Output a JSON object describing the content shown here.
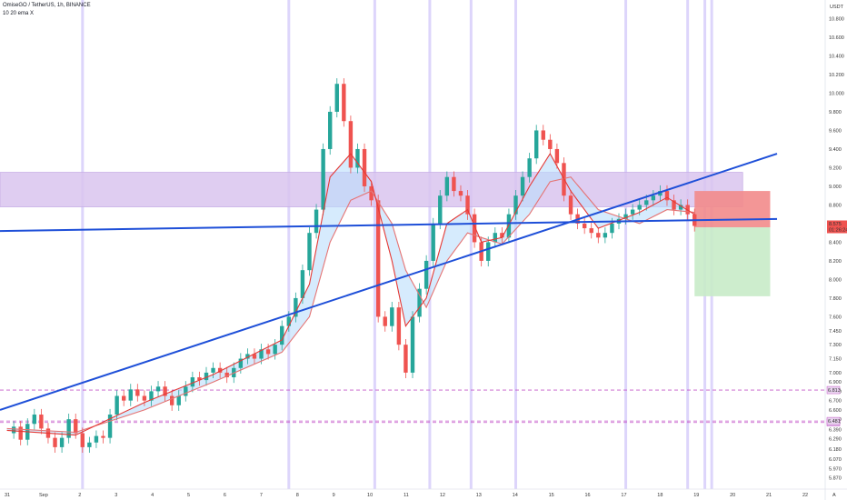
{
  "header": {
    "symbol_line": "OmiseGO / TetherUS, 1h, BINANCE",
    "indicator_line": "10 20 ema X"
  },
  "chart_data": {
    "type": "line",
    "title": "OmiseGO / TetherUS, 1h, BINANCE",
    "currency": "USDT",
    "ylim": [
      5.75,
      11.0
    ],
    "y_ticks": [
      5.87,
      5.97,
      6.07,
      6.18,
      6.29,
      6.39,
      6.5,
      6.6,
      6.7,
      6.8,
      6.9,
      7.0,
      7.15,
      7.3,
      7.45,
      7.6,
      7.8,
      8.0,
      8.2,
      8.4,
      8.6,
      8.8,
      9.0,
      9.2,
      9.4,
      9.6,
      9.8,
      10.0,
      10.2,
      10.4,
      10.6,
      10.8
    ],
    "y_tick_labels": [
      "5.870",
      "5.970",
      "6.070",
      "6.180",
      "6.290",
      "6.390",
      "6.500",
      "6.600",
      "6.700",
      "6.800",
      "6.900",
      "7.000",
      "7.150",
      "7.300",
      "7.450",
      "7.600",
      "7.800",
      "8.000",
      "8.200",
      "8.400",
      "8.600",
      "8.800",
      "9.000",
      "9.200",
      "9.400",
      "9.600",
      "9.800",
      "10.000",
      "10.200",
      "10.400",
      "10.600",
      "10.800"
    ],
    "x_ticks": [
      "31",
      "Sep",
      "2",
      "3",
      "4",
      "5",
      "6",
      "7",
      "8",
      "9",
      "10",
      "11",
      "12",
      "13",
      "14",
      "15",
      "16",
      "17",
      "18",
      "19",
      "20",
      "21",
      "22"
    ],
    "price_series": [
      {
        "x": 0,
        "y": 6.35
      },
      {
        "x": 1,
        "y": 6.42
      },
      {
        "x": 2,
        "y": 6.28
      },
      {
        "x": 3,
        "y": 6.45
      },
      {
        "x": 4,
        "y": 6.55
      },
      {
        "x": 5,
        "y": 6.4
      },
      {
        "x": 6,
        "y": 6.3
      },
      {
        "x": 7,
        "y": 6.2
      },
      {
        "x": 8,
        "y": 6.3
      },
      {
        "x": 9,
        "y": 6.5
      },
      {
        "x": 10,
        "y": 6.35
      },
      {
        "x": 11,
        "y": 6.2
      },
      {
        "x": 12,
        "y": 6.25
      },
      {
        "x": 13,
        "y": 6.32
      },
      {
        "x": 14,
        "y": 6.3
      },
      {
        "x": 15,
        "y": 6.55
      },
      {
        "x": 16,
        "y": 6.75
      },
      {
        "x": 17,
        "y": 6.7
      },
      {
        "x": 18,
        "y": 6.82
      },
      {
        "x": 19,
        "y": 6.75
      },
      {
        "x": 20,
        "y": 6.7
      },
      {
        "x": 21,
        "y": 6.8
      },
      {
        "x": 22,
        "y": 6.85
      },
      {
        "x": 23,
        "y": 6.75
      },
      {
        "x": 24,
        "y": 6.65
      },
      {
        "x": 25,
        "y": 6.75
      },
      {
        "x": 26,
        "y": 6.85
      },
      {
        "x": 27,
        "y": 6.95
      },
      {
        "x": 28,
        "y": 6.92
      },
      {
        "x": 29,
        "y": 7.0
      },
      {
        "x": 30,
        "y": 7.05
      },
      {
        "x": 31,
        "y": 7.0
      },
      {
        "x": 32,
        "y": 6.95
      },
      {
        "x": 33,
        "y": 7.05
      },
      {
        "x": 34,
        "y": 7.15
      },
      {
        "x": 35,
        "y": 7.2
      },
      {
        "x": 36,
        "y": 7.15
      },
      {
        "x": 37,
        "y": 7.25
      },
      {
        "x": 38,
        "y": 7.2
      },
      {
        "x": 39,
        "y": 7.3
      },
      {
        "x": 40,
        "y": 7.5
      },
      {
        "x": 41,
        "y": 7.6
      },
      {
        "x": 42,
        "y": 7.8
      },
      {
        "x": 43,
        "y": 8.1
      },
      {
        "x": 44,
        "y": 8.5
      },
      {
        "x": 45,
        "y": 8.75
      },
      {
        "x": 46,
        "y": 9.4
      },
      {
        "x": 47,
        "y": 9.8
      },
      {
        "x": 48,
        "y": 10.1
      },
      {
        "x": 49,
        "y": 9.7
      },
      {
        "x": 50,
        "y": 9.2
      },
      {
        "x": 51,
        "y": 9.4
      },
      {
        "x": 52,
        "y": 9.0
      },
      {
        "x": 53,
        "y": 8.85
      },
      {
        "x": 54,
        "y": 7.6
      },
      {
        "x": 55,
        "y": 7.5
      },
      {
        "x": 56,
        "y": 7.7
      },
      {
        "x": 57,
        "y": 7.3
      },
      {
        "x": 58,
        "y": 7.0
      },
      {
        "x": 59,
        "y": 7.6
      },
      {
        "x": 60,
        "y": 7.9
      },
      {
        "x": 61,
        "y": 8.2
      },
      {
        "x": 62,
        "y": 8.6
      },
      {
        "x": 63,
        "y": 8.9
      },
      {
        "x": 64,
        "y": 9.1
      },
      {
        "x": 65,
        "y": 8.95
      },
      {
        "x": 66,
        "y": 8.9
      },
      {
        "x": 67,
        "y": 8.7
      },
      {
        "x": 68,
        "y": 8.4
      },
      {
        "x": 69,
        "y": 8.2
      },
      {
        "x": 70,
        "y": 8.4
      },
      {
        "x": 71,
        "y": 8.5
      },
      {
        "x": 72,
        "y": 8.45
      },
      {
        "x": 73,
        "y": 8.7
      },
      {
        "x": 74,
        "y": 8.9
      },
      {
        "x": 75,
        "y": 9.1
      },
      {
        "x": 76,
        "y": 9.3
      },
      {
        "x": 77,
        "y": 9.6
      },
      {
        "x": 78,
        "y": 9.5
      },
      {
        "x": 79,
        "y": 9.4
      },
      {
        "x": 80,
        "y": 9.25
      },
      {
        "x": 81,
        "y": 8.9
      },
      {
        "x": 82,
        "y": 8.7
      },
      {
        "x": 83,
        "y": 8.6
      },
      {
        "x": 84,
        "y": 8.55
      },
      {
        "x": 85,
        "y": 8.5
      },
      {
        "x": 86,
        "y": 8.45
      },
      {
        "x": 87,
        "y": 8.5
      },
      {
        "x": 88,
        "y": 8.6
      },
      {
        "x": 89,
        "y": 8.65
      },
      {
        "x": 90,
        "y": 8.7
      },
      {
        "x": 91,
        "y": 8.75
      },
      {
        "x": 92,
        "y": 8.8
      },
      {
        "x": 93,
        "y": 8.85
      },
      {
        "x": 94,
        "y": 8.9
      },
      {
        "x": 95,
        "y": 8.95
      },
      {
        "x": 96,
        "y": 8.85
      },
      {
        "x": 97,
        "y": 8.75
      },
      {
        "x": 98,
        "y": 8.8
      },
      {
        "x": 99,
        "y": 8.7
      },
      {
        "x": 100,
        "y": 8.575
      }
    ],
    "ema_fast": [
      {
        "x": 0,
        "y": 6.38
      },
      {
        "x": 10,
        "y": 6.33
      },
      {
        "x": 20,
        "y": 6.68
      },
      {
        "x": 30,
        "y": 6.98
      },
      {
        "x": 40,
        "y": 7.35
      },
      {
        "x": 44,
        "y": 7.95
      },
      {
        "x": 47,
        "y": 9.1
      },
      {
        "x": 50,
        "y": 9.35
      },
      {
        "x": 53,
        "y": 9.05
      },
      {
        "x": 56,
        "y": 8.2
      },
      {
        "x": 58,
        "y": 7.5
      },
      {
        "x": 61,
        "y": 7.8
      },
      {
        "x": 64,
        "y": 8.6
      },
      {
        "x": 67,
        "y": 8.75
      },
      {
        "x": 69,
        "y": 8.4
      },
      {
        "x": 72,
        "y": 8.45
      },
      {
        "x": 76,
        "y": 9.0
      },
      {
        "x": 79,
        "y": 9.35
      },
      {
        "x": 82,
        "y": 8.95
      },
      {
        "x": 86,
        "y": 8.55
      },
      {
        "x": 92,
        "y": 8.72
      },
      {
        "x": 96,
        "y": 8.88
      },
      {
        "x": 100,
        "y": 8.7
      }
    ],
    "ema_slow": [
      {
        "x": 0,
        "y": 6.4
      },
      {
        "x": 10,
        "y": 6.36
      },
      {
        "x": 20,
        "y": 6.6
      },
      {
        "x": 30,
        "y": 6.9
      },
      {
        "x": 40,
        "y": 7.22
      },
      {
        "x": 44,
        "y": 7.6
      },
      {
        "x": 47,
        "y": 8.4
      },
      {
        "x": 50,
        "y": 8.85
      },
      {
        "x": 53,
        "y": 8.95
      },
      {
        "x": 56,
        "y": 8.6
      },
      {
        "x": 58,
        "y": 8.1
      },
      {
        "x": 61,
        "y": 7.7
      },
      {
        "x": 64,
        "y": 8.2
      },
      {
        "x": 67,
        "y": 8.5
      },
      {
        "x": 69,
        "y": 8.45
      },
      {
        "x": 72,
        "y": 8.38
      },
      {
        "x": 76,
        "y": 8.7
      },
      {
        "x": 79,
        "y": 9.05
      },
      {
        "x": 82,
        "y": 9.1
      },
      {
        "x": 86,
        "y": 8.75
      },
      {
        "x": 92,
        "y": 8.6
      },
      {
        "x": 96,
        "y": 8.75
      },
      {
        "x": 100,
        "y": 8.72
      }
    ],
    "trendlines": [
      {
        "name": "horizontal-support",
        "from": {
          "x": -1,
          "y": 8.52
        },
        "to": {
          "x": 112,
          "y": 8.65
        }
      },
      {
        "name": "ascending-support",
        "from": {
          "x": -1,
          "y": 6.6
        },
        "to": {
          "x": 112,
          "y": 9.35
        }
      }
    ],
    "resistance_zone": {
      "x_from": -1,
      "x_to": 107,
      "y_from": 8.78,
      "y_to": 9.15
    },
    "short_position": {
      "x_from": 100,
      "x_to": 111,
      "entry": 8.56,
      "stop": 8.95,
      "target": 7.82
    },
    "horizontal_levels": [
      {
        "value": 6.813,
        "label": "6.813"
      },
      {
        "value": 6.465,
        "label": "6.465"
      },
      {
        "value": 6.481,
        "label": "6.481"
      }
    ],
    "session_markers_x": [
      11,
      41,
      53.5,
      61.5,
      67.5,
      74,
      90,
      99,
      101.5,
      102.5
    ],
    "last_price": {
      "value": 8.575,
      "label": "8.575",
      "countdown": "01:26:24"
    },
    "colors": {
      "up": "#26a69a",
      "down": "#ef5350",
      "ema_fast": "#e53935",
      "ema_slow": "#e57373",
      "ema_fill_up": "#bbdefb",
      "ema_fill_down": "#f4b6b6",
      "trendline": "#1e4fd8",
      "zone": "#d9c4ef",
      "stop_zone": "#f28b8b",
      "target_zone": "#c8ebc8",
      "level": "#c558c9",
      "session_marker": "#ddd5fb",
      "last_price_bg": "#ef5350"
    }
  }
}
